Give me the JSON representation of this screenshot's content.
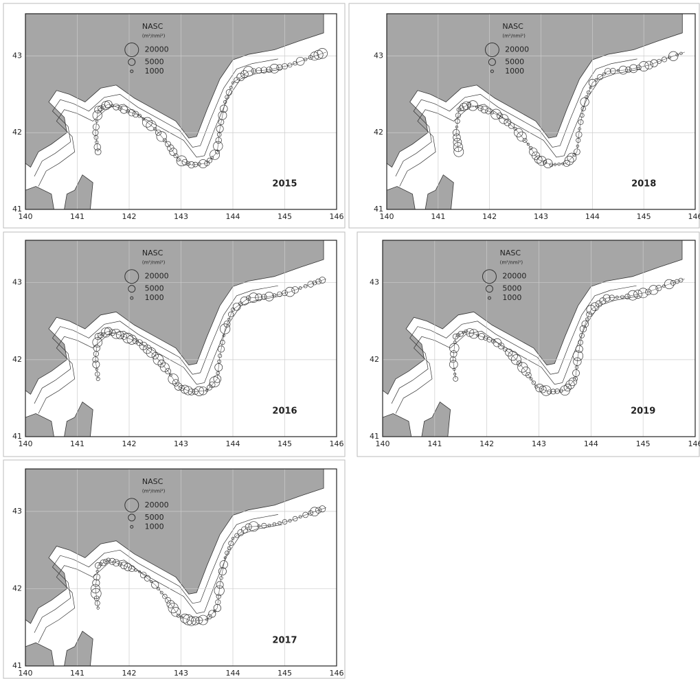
{
  "legend": {
    "title": "NASC",
    "unit": "(m²/nmi²)",
    "sizes": [
      "20000",
      "5000",
      "1000"
    ]
  },
  "axes": {
    "xticks": [
      140,
      141,
      142,
      143,
      144,
      145,
      146
    ],
    "yticks": [
      41,
      42,
      43
    ]
  },
  "panels": [
    {
      "year": "2015"
    },
    {
      "year": "2018"
    },
    {
      "year": "2016"
    },
    {
      "year": "2019"
    },
    {
      "year": "2017"
    }
  ]
}
